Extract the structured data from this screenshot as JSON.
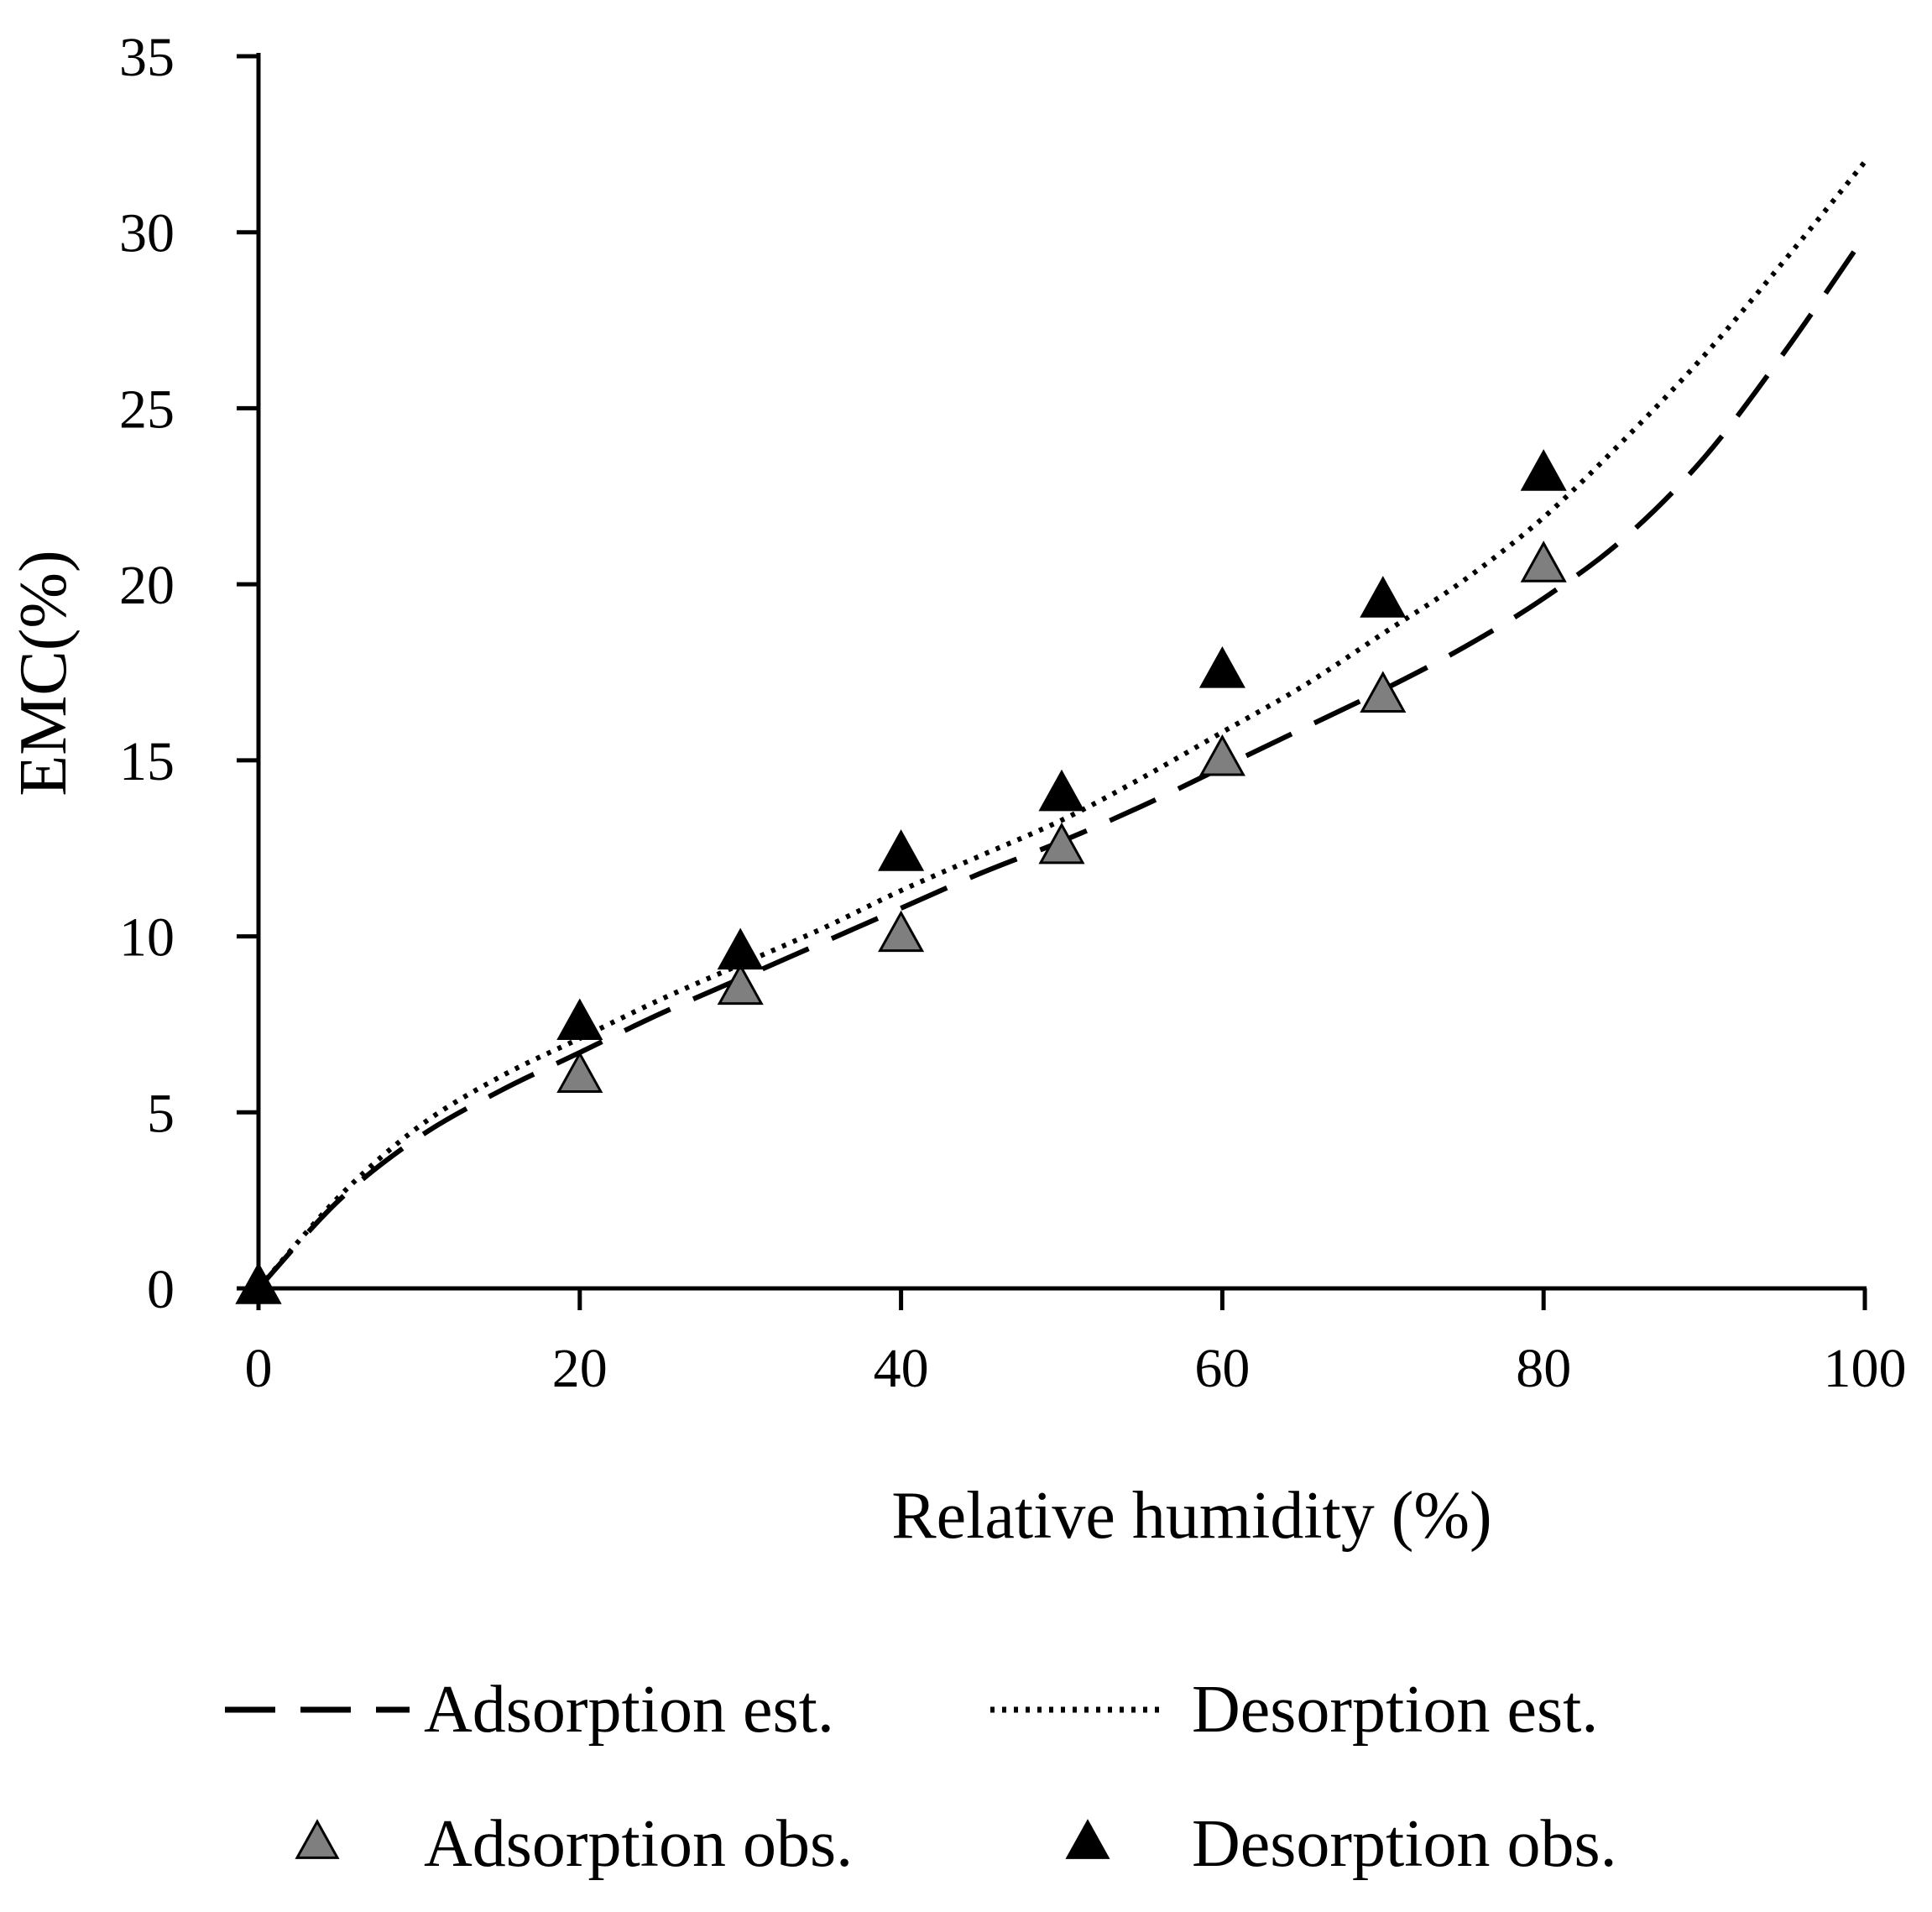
{
  "chart_data": {
    "type": "scatter",
    "title": "",
    "xlabel": "Relative humidity (%)",
    "ylabel": "EMC(%)",
    "xlim": [
      0,
      100
    ],
    "ylim": [
      0,
      35
    ],
    "x_ticks": [
      0,
      20,
      40,
      60,
      80,
      100
    ],
    "y_ticks": [
      0,
      5,
      10,
      15,
      20,
      25,
      30,
      35
    ],
    "x_tick_labels": [
      "0",
      "20",
      "40",
      "60",
      "80",
      "100"
    ],
    "y_tick_labels": [
      "0",
      "5",
      "10",
      "15",
      "20",
      "25",
      "30",
      "35"
    ],
    "grid": false,
    "legend_position": "bottom",
    "series": [
      {
        "name": "Adsorption est.",
        "kind": "line",
        "style": "dashed",
        "color": "#000000",
        "x": [
          0,
          5,
          10,
          15,
          20,
          25,
          30,
          35,
          40,
          45,
          50,
          55,
          60,
          65,
          70,
          75,
          80,
          85,
          90,
          95,
          100
        ],
        "y": [
          0,
          2.5,
          4.3,
          5.6,
          6.7,
          7.8,
          8.8,
          9.8,
          10.8,
          11.8,
          12.7,
          13.7,
          14.8,
          15.9,
          17.0,
          18.2,
          19.6,
          21.3,
          23.6,
          26.6,
          29.9
        ]
      },
      {
        "name": "Desorption est.",
        "kind": "line",
        "style": "dotted",
        "color": "#000000",
        "x": [
          0,
          5,
          10,
          15,
          20,
          25,
          30,
          35,
          40,
          45,
          50,
          55,
          60,
          65,
          70,
          75,
          80,
          85,
          90,
          95,
          100
        ],
        "y": [
          0,
          2.6,
          4.6,
          6.0,
          7.1,
          8.2,
          9.2,
          10.2,
          11.3,
          12.3,
          13.3,
          14.5,
          15.8,
          17.1,
          18.6,
          20.1,
          21.9,
          24.1,
          26.5,
          29.2,
          32.0
        ]
      },
      {
        "name": "Adsorption obs.",
        "kind": "scatter",
        "marker": "triangle",
        "color": "#7f7f7f",
        "x": [
          0,
          20,
          30,
          40,
          50,
          60,
          70,
          80
        ],
        "y": [
          0,
          6.0,
          8.5,
          10.0,
          12.5,
          15.0,
          16.8,
          20.5
        ]
      },
      {
        "name": "Desorption obs.",
        "kind": "scatter",
        "marker": "triangle",
        "color": "#000000",
        "x": [
          0,
          20,
          30,
          40,
          50,
          60,
          70,
          80
        ],
        "y": [
          0,
          7.5,
          9.5,
          12.3,
          14.0,
          17.5,
          19.5,
          23.1
        ]
      }
    ]
  }
}
